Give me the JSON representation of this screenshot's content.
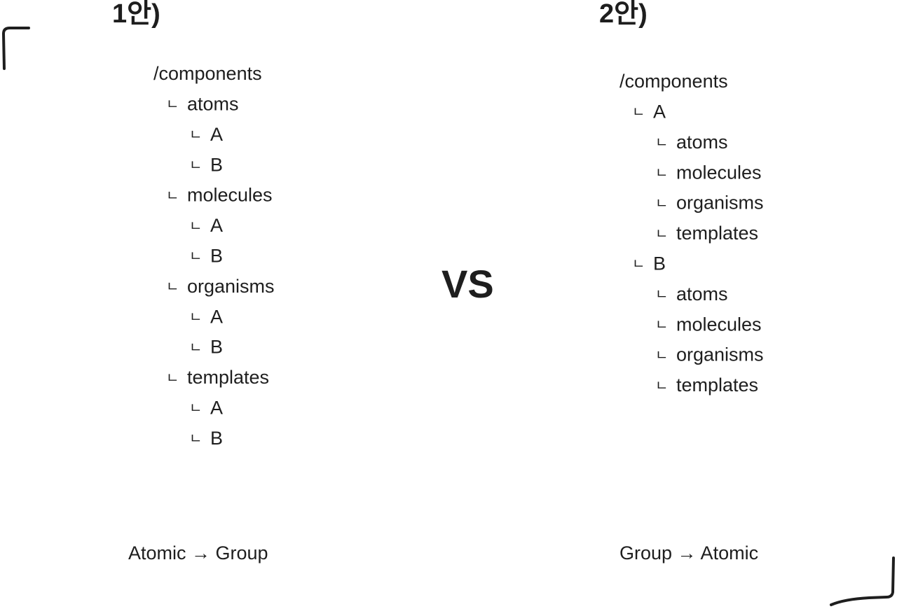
{
  "branch_marker": "ㄴ",
  "separator": "VS",
  "panels": [
    {
      "title": "1안)",
      "tree": {
        "label": "/components",
        "children": [
          {
            "label": "atoms",
            "children": [
              {
                "label": "A"
              },
              {
                "label": "B"
              }
            ]
          },
          {
            "label": "molecules",
            "children": [
              {
                "label": "A"
              },
              {
                "label": "B"
              }
            ]
          },
          {
            "label": "organisms",
            "children": [
              {
                "label": "A"
              },
              {
                "label": "B"
              }
            ]
          },
          {
            "label": "templates",
            "children": [
              {
                "label": "A"
              },
              {
                "label": "B"
              }
            ]
          }
        ]
      },
      "caption": "Atomic → Group"
    },
    {
      "title": "2안)",
      "tree": {
        "label": "/components",
        "children": [
          {
            "label": "A",
            "children": [
              {
                "label": "atoms"
              },
              {
                "label": "molecules"
              },
              {
                "label": "organisms"
              },
              {
                "label": "templates"
              }
            ]
          },
          {
            "label": "B",
            "children": [
              {
                "label": "atoms"
              },
              {
                "label": "molecules"
              },
              {
                "label": "organisms"
              },
              {
                "label": "templates"
              }
            ]
          }
        ]
      },
      "caption": "Group → Atomic"
    }
  ]
}
